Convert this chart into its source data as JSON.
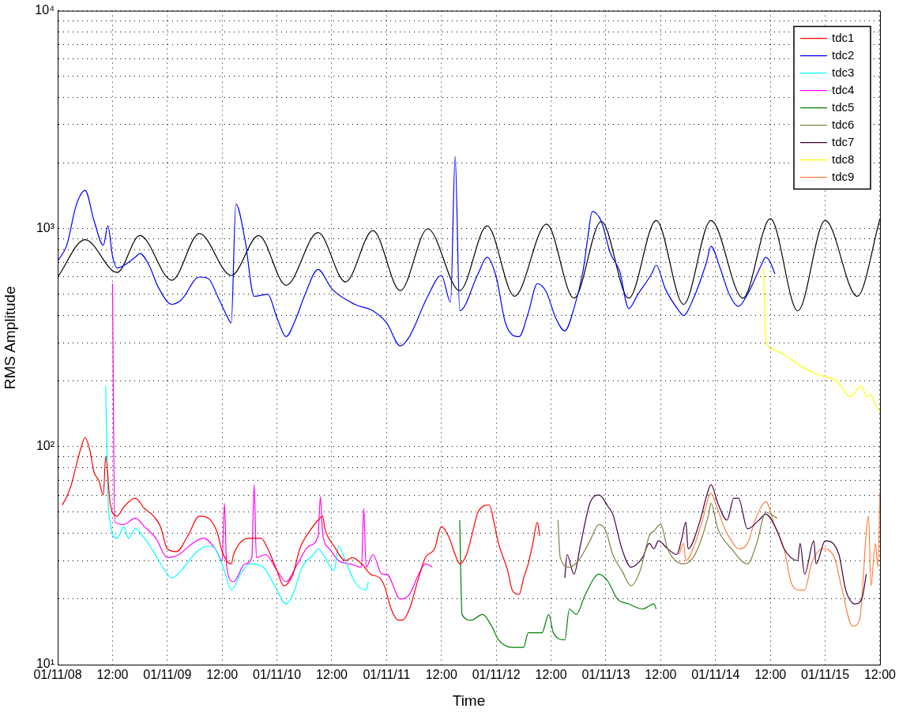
{
  "chart_data": {
    "type": "line",
    "xlabel": "Time",
    "ylabel": "RMS Amplitude",
    "log": "y",
    "grid": true,
    "legend": "top right",
    "xlim": [
      "--11-08T00:00",
      "--11-15T12:00"
    ],
    "xticks": [
      {
        "value": "--11-08T00:00",
        "label": "01/11/08"
      },
      {
        "value": "--11-08T12:00",
        "label": "12:00"
      },
      {
        "value": "--11-09T00:00",
        "label": "01/11/09"
      },
      {
        "value": "--11-09T12:00",
        "label": "12:00"
      },
      {
        "value": "--11-10T00:00",
        "label": "01/11/10"
      },
      {
        "value": "--11-10T12:00",
        "label": "12:00"
      },
      {
        "value": "--11-11T00:00",
        "label": "01/11/11"
      },
      {
        "value": "--11-11T12:00",
        "label": "12:00"
      },
      {
        "value": "--11-12T00:00",
        "label": "01/11/12"
      },
      {
        "value": "--11-12T12:00",
        "label": "12:00"
      },
      {
        "value": "--11-13T00:00",
        "label": "01/11/13"
      },
      {
        "value": "--11-13T12:00",
        "label": "12:00"
      },
      {
        "value": "--11-14T00:00",
        "label": "01/11/14"
      },
      {
        "value": "--11-14T12:00",
        "label": "12:00"
      },
      {
        "value": "--11-15T00:00",
        "label": "01/11/15"
      },
      {
        "value": "--11-15T12:00",
        "label": "12:00"
      }
    ],
    "ylim": [
      10,
      10000
    ],
    "yticks": [
      {
        "value": 10,
        "label": "10¹"
      },
      {
        "value": 20,
        "label": null
      },
      {
        "value": 30,
        "label": null
      },
      {
        "value": 40,
        "label": null
      },
      {
        "value": 50,
        "label": null
      },
      {
        "value": 60,
        "label": null
      },
      {
        "value": 70,
        "label": null
      },
      {
        "value": 80,
        "label": null
      },
      {
        "value": 90,
        "label": null
      },
      {
        "value": 100,
        "label": "10²"
      },
      {
        "value": 200,
        "label": null
      },
      {
        "value": 300,
        "label": null
      },
      {
        "value": 400,
        "label": null
      },
      {
        "value": 500,
        "label": null
      },
      {
        "value": 600,
        "label": null
      },
      {
        "value": 700,
        "label": null
      },
      {
        "value": 800,
        "label": null
      },
      {
        "value": 900,
        "label": null
      },
      {
        "value": 1000,
        "label": "10³"
      },
      {
        "value": 2000,
        "label": null
      },
      {
        "value": 3000,
        "label": null
      },
      {
        "value": 4000,
        "label": null
      },
      {
        "value": 5000,
        "label": null
      },
      {
        "value": 6000,
        "label": null
      },
      {
        "value": 7000,
        "label": null
      },
      {
        "value": 8000,
        "label": null
      },
      {
        "value": 9000,
        "label": null
      },
      {
        "value": 10000,
        "label": "10⁴"
      }
    ],
    "series": [
      {
        "name": "tdc1",
        "color": "#ff0000",
        "x": [
          "--11-08T01:00",
          "--11-08T02:00",
          "--11-08T03:00",
          "--11-08T04:00",
          "--11-08T05:00",
          "--11-08T06:00",
          "--11-08T07:00",
          "--11-08T08:00",
          "--11-08T09:00",
          "--11-08T10:00",
          "--11-08T10:30",
          "--11-08T11:30",
          "--11-08T13:00",
          "--11-08T14:30",
          "--11-08T17:00",
          "--11-08T19:00",
          "--11-08T21:00",
          "--11-08T22:30",
          "--11-09T00:00",
          "--11-09T02:00",
          "--11-09T04:30",
          "--11-09T07:00",
          "--11-09T09:00",
          "--11-09T11:00",
          "--11-09T12:00",
          "--11-09T14:00",
          "--11-09T14:30",
          "--11-09T18:00",
          "--11-09T20:30",
          "--11-09T22:00",
          "--11-10T00:00",
          "--11-10T01:30",
          "--11-10T03:30",
          "--11-10T05:00",
          "--11-10T07:30",
          "--11-10T09:00",
          "--11-10T10:00",
          "--11-10T10:30",
          "--11-10T12:30",
          "--11-10T15:00",
          "--11-10T16:30",
          "--11-10T18:30",
          "--11-10T20:30",
          "--11-10T22:30",
          "--11-10T23:30",
          "--11-11T01:00",
          "--11-11T02:30",
          "--11-11T03:30",
          "--11-11T05:00",
          "--11-11T07:00",
          "--11-11T08:30",
          "--11-11T10:30",
          "--11-11T12:00",
          "--11-11T13:30",
          "--11-11T15:00",
          "--11-11T16:00",
          "--11-11T17:30",
          "--11-11T18:30",
          "--11-11T20:00",
          "--11-11T22:30",
          "--11-11T23:30",
          "--11-12T00:30",
          "--11-12T02:30",
          "--11-12T03:30",
          "--11-12T05:00",
          "--11-12T06:00",
          "--11-12T07:00",
          "--11-12T08:00",
          "--11-12T09:00",
          "--11-12T09:30"
        ],
        "values": [
          54,
          59,
          67,
          81,
          97,
          110,
          97,
          76,
          70,
          60,
          90,
          55,
          48,
          53,
          58,
          52,
          48,
          43,
          34,
          33,
          39,
          48,
          47,
          40,
          33,
          29,
          32,
          38,
          38,
          34,
          27,
          23,
          26,
          34,
          42,
          46,
          48,
          42,
          35,
          30,
          31,
          29,
          26,
          25,
          23,
          18,
          16,
          16,
          18,
          25,
          31,
          34,
          43,
          39,
          32,
          29,
          32,
          38,
          50,
          54,
          45,
          36,
          27,
          22,
          21,
          25,
          29,
          36,
          45,
          39
        ]
      },
      {
        "name": "tdc2",
        "color": "#0000ff",
        "x": [
          "--11-08T00:00",
          "--11-08T02:00",
          "--11-08T04:00",
          "--11-08T06:00",
          "--11-08T08:00",
          "--11-08T10:00",
          "--11-08T11:00",
          "--11-08T12:00",
          "--11-08T13:00",
          "--11-08T17:00",
          "--11-08T18:00",
          "--11-08T20:00",
          "--11-08T22:00",
          "--11-09T01:00",
          "--11-09T03:00",
          "--11-09T07:00",
          "--11-09T09:00",
          "--11-09T11:00",
          "--11-09T13:00",
          "--11-09T14:00",
          "--11-09T15:00",
          "--11-09T17:00",
          "--11-09T19:00",
          "--11-09T22:00",
          "--11-10T00:00",
          "--11-10T02:00",
          "--11-10T04:00",
          "--11-10T06:00",
          "--11-10T09:00",
          "--11-10T12:00",
          "--11-10T17:00",
          "--11-10T21:00",
          "--11-11T00:00",
          "--11-11T03:00",
          "--11-11T05:00",
          "--11-11T09:00",
          "--11-11T12:00",
          "--11-11T14:00",
          "--11-11T15:00",
          "--11-11T16:00",
          "--11-11T20:00",
          "--11-11T22:00",
          "--11-12T00:00",
          "--11-12T02:00",
          "--11-12T05:00",
          "--11-12T07:00",
          "--11-12T09:00",
          "--11-12T11:00",
          "--11-12T13:00",
          "--11-12T15:00",
          "--11-12T17:00",
          "--11-12T19:00",
          "--11-12T20:00",
          "--11-12T21:00",
          "--11-12T23:00",
          "--11-13T01:00",
          "--11-13T03:00",
          "--11-13T05:00",
          "--11-13T07:00",
          "--11-13T10:00",
          "--11-13T11:00",
          "--11-13T13:00",
          "--11-13T16:00",
          "--11-13T17:00",
          "--11-13T19:00",
          "--11-13T22:00",
          "--11-13T23:00",
          "--11-14T01:00",
          "--11-14T03:00",
          "--11-14T05:00",
          "--11-14T07:00",
          "--11-14T10:00",
          "--11-14T11:00",
          "--11-14T12:00",
          "--11-14T13:00"
        ],
        "values": [
          710,
          840,
          1270,
          1500,
          1080,
          840,
          1030,
          750,
          660,
          740,
          770,
          680,
          540,
          450,
          470,
          600,
          590,
          490,
          400,
          370,
          1300,
          890,
          490,
          500,
          390,
          320,
          380,
          490,
          650,
          530,
          450,
          420,
          370,
          290,
          320,
          490,
          610,
          460,
          2150,
          420,
          620,
          740,
          600,
          370,
          320,
          410,
          560,
          510,
          390,
          340,
          430,
          640,
          900,
          1200,
          1080,
          770,
          640,
          430,
          500,
          620,
          680,
          530,
          420,
          400,
          470,
          700,
          830,
          660,
          500,
          440,
          500,
          680,
          740,
          700,
          620
        ]
      },
      {
        "name": "tdc3",
        "color": "#00ffff",
        "x": [
          "--11-08T10:30",
          "--11-08T11:00",
          "--11-08T11:30",
          "--11-08T13:00",
          "--11-08T14:30",
          "--11-08T15:30",
          "--11-08T17:00",
          "--11-08T19:00",
          "--11-08T21:00",
          "--11-08T23:00",
          "--11-09T01:00",
          "--11-09T03:00",
          "--11-09T06:30",
          "--11-09T09:00",
          "--11-09T10:30",
          "--11-09T12:30",
          "--11-09T14:00",
          "--11-09T16:00",
          "--11-09T18:00",
          "--11-09T21:00",
          "--11-09T23:30",
          "--11-10T02:00",
          "--11-10T03:30",
          "--11-10T05:30",
          "--11-10T08:00",
          "--11-10T09:00",
          "--11-10T10:30",
          "--11-10T12:30",
          "--11-10T13:30",
          "--11-10T15:00",
          "--11-10T17:00",
          "--11-10T19:30",
          "--11-10T20:00"
        ],
        "values": [
          190,
          59,
          45,
          38,
          43,
          38,
          42,
          38,
          33,
          28,
          25,
          27,
          33,
          35,
          34,
          27,
          22,
          26,
          29,
          28,
          23,
          19,
          21,
          28,
          32,
          34,
          31,
          27,
          35,
          30,
          24,
          22,
          24
        ]
      },
      {
        "name": "tdc4",
        "color": "#ff00ff",
        "x": [
          "--11-08T12:00",
          "--11-08T12:30",
          "--11-08T14:30",
          "--11-08T17:00",
          "--11-08T19:00",
          "--11-08T21:30",
          "--11-09T00:00",
          "--11-09T02:30",
          "--11-09T05:30",
          "--11-09T08:00",
          "--11-09T10:30",
          "--11-09T12:00",
          "--11-09T12:30",
          "--11-09T13:00",
          "--11-09T14:30",
          "--11-09T17:00",
          "--11-09T18:30",
          "--11-09T19:00",
          "--11-09T19:30",
          "--11-09T21:30",
          "--11-10T00:00",
          "--11-10T02:00",
          "--11-10T04:30",
          "--11-10T07:00",
          "--11-10T09:00",
          "--11-10T09:30",
          "--11-10T10:00",
          "--11-10T11:30",
          "--11-10T13:30",
          "--11-10T16:00",
          "--11-10T18:30",
          "--11-10T19:00",
          "--11-10T19:30",
          "--11-10T21:00",
          "--11-10T23:00",
          "--11-11T00:00",
          "--11-11T03:00",
          "--11-11T05:00",
          "--11-11T07:00",
          "--11-11T08:30",
          "--11-11T10:00"
        ],
        "values": [
          560,
          45,
          44,
          47,
          43,
          38,
          31,
          32,
          36,
          38,
          34,
          30,
          55,
          28,
          24,
          29,
          31,
          67,
          31,
          32,
          27,
          24,
          29,
          35,
          39,
          59,
          40,
          34,
          30,
          29,
          28,
          52,
          28,
          32,
          26,
          26,
          20,
          21,
          26,
          29,
          28
        ]
      },
      {
        "name": "tdc5",
        "color": "#008000",
        "x": [
          "--11-11T16:00",
          "--11-11T16:30",
          "--11-11T18:30",
          "--11-11T21:00",
          "--11-11T23:00",
          "--11-12T00:30",
          "--11-12T03:30",
          "--11-12T06:00",
          "--11-12T07:00",
          "--11-12T10:00",
          "--11-12T11:30",
          "--11-12T12:30",
          "--11-12T15:00",
          "--11-12T16:00",
          "--11-12T17:30",
          "--11-12T19:30",
          "--11-12T22:30",
          "--11-13T00:30",
          "--11-13T02:30",
          "--11-13T05:00",
          "--11-13T08:00",
          "--11-13T10:30",
          "--11-13T11:00"
        ],
        "values": [
          46,
          17,
          16,
          17,
          15,
          13,
          12,
          12,
          14,
          14,
          17,
          14,
          13,
          18,
          17,
          21,
          26,
          24,
          20,
          19,
          18,
          19,
          18
        ]
      },
      {
        "name": "tdc6",
        "color": "#808040",
        "x": [
          "--11-12T13:30",
          "--11-12T14:00",
          "--11-12T16:00",
          "--11-12T18:00",
          "--11-12T20:30",
          "--11-12T22:30",
          "--11-13T00:00",
          "--11-13T01:30",
          "--11-13T03:30",
          "--11-13T05:30",
          "--11-13T07:30",
          "--11-13T09:30",
          "--11-13T10:30",
          "--11-13T12:00",
          "--11-13T13:30",
          "--11-13T17:00",
          "--11-13T19:30",
          "--11-13T22:30",
          "--11-13T23:00",
          "--11-14T00:30",
          "--11-14T03:30",
          "--11-14T07:00",
          "--11-14T09:00",
          "--11-14T11:00",
          "--11-14T13:30"
        ],
        "values": [
          46,
          31,
          28,
          30,
          37,
          44,
          41,
          32,
          27,
          23,
          27,
          39,
          41,
          44,
          34,
          29,
          32,
          49,
          55,
          42,
          34,
          29,
          36,
          50,
          47
        ]
      },
      {
        "name": "tdc7",
        "color": "#400040",
        "x": [
          "--11-12T15:00",
          "--11-12T15:30",
          "--11-12T17:00",
          "--11-12T18:30",
          "--11-12T20:30",
          "--11-12T22:30",
          "--11-13T00:30",
          "--11-13T01:30",
          "--11-13T03:30",
          "--11-13T05:30",
          "--11-13T08:00",
          "--11-13T09:30",
          "--11-13T10:30",
          "--11-13T11:30",
          "--11-13T13:30",
          "--11-13T15:30",
          "--11-13T16:30",
          "--11-13T17:30",
          "--11-13T18:00",
          "--11-13T20:30",
          "--11-13T22:00",
          "--11-13T23:00",
          "--11-14T00:30",
          "--11-14T02:30",
          "--11-14T04:00",
          "--11-14T05:00",
          "--11-14T07:00",
          "--11-14T09:30",
          "--11-14T11:00",
          "--11-14T13:30",
          "--11-14T15:00",
          "--11-14T18:00",
          "--11-14T18:30",
          "--11-14T19:30",
          "--11-14T21:30",
          "--11-14T22:00",
          "--11-15T00:00",
          "--11-15T03:00",
          "--11-15T04:30",
          "--11-15T06:30",
          "--11-15T08:00",
          "--11-15T09:00"
        ],
        "values": [
          25,
          32,
          26,
          36,
          55,
          60,
          53,
          49,
          34,
          28,
          31,
          36,
          34,
          37,
          34,
          32,
          37,
          45,
          34,
          45,
          59,
          67,
          55,
          46,
          58,
          58,
          42,
          46,
          49,
          41,
          34,
          30,
          36,
          26,
          37,
          29,
          37,
          32,
          22,
          19,
          20,
          26
        ]
      },
      {
        "name": "tdc8",
        "color": "#ffff00",
        "x": [
          "--11-14T10:30",
          "--11-14T11:00",
          "--11-14T12:30",
          "--11-14T15:00",
          "--11-14T18:00",
          "--11-14T21:00",
          "--11-15T00:00",
          "--11-15T02:30",
          "--11-15T05:30",
          "--11-15T08:00",
          "--11-15T09:00",
          "--11-15T10:00",
          "--11-15T11:00",
          "--11-15T12:00"
        ],
        "values": [
          660,
          310,
          280,
          264,
          240,
          220,
          210,
          200,
          170,
          190,
          170,
          173,
          155,
          145
        ]
      },
      {
        "name": "tdc9",
        "color": "#ff8040",
        "x": [
          "--11-13T16:00",
          "--11-13T17:00",
          "--11-13T17:30",
          "--11-13T19:30",
          "--11-13T21:00",
          "--11-13T23:00",
          "--11-14T00:00",
          "--11-14T02:00",
          "--11-14T03:30",
          "--11-14T05:00",
          "--11-14T07:00",
          "--11-14T08:30",
          "--11-14T10:00",
          "--11-14T11:00",
          "--11-14T13:00",
          "--11-14T15:00",
          "--11-14T16:30",
          "--11-14T18:00",
          "--11-14T19:30",
          "--11-14T21:00",
          "--11-14T23:30",
          "--11-15T02:00",
          "--11-15T03:30",
          "--11-15T06:00",
          "--11-15T07:30",
          "--11-15T09:30",
          "--11-15T10:00",
          "--11-15T11:00",
          "--11-15T11:30",
          "--11-15T12:00"
        ],
        "values": [
          32,
          36,
          30,
          36,
          45,
          61,
          55,
          42,
          37,
          34,
          36,
          45,
          53,
          56,
          43,
          34,
          24,
          22,
          22,
          29,
          34,
          31,
          23,
          15,
          16,
          48,
          23,
          36,
          28,
          62
        ]
      },
      {
        "color": "#000000",
        "x": [
          "--11-08T00:00",
          "--11-08T06:00",
          "--11-08T13:00",
          "--11-08T18:00",
          "--11-09T01:00",
          "--11-09T07:00",
          "--11-09T14:00",
          "--11-09T20:00",
          "--11-10T02:00",
          "--11-10T09:00",
          "--11-10T15:00",
          "--11-10T21:00",
          "--11-11T03:00",
          "--11-11T09:00",
          "--11-11T16:00",
          "--11-11T22:00",
          "--11-12T04:00",
          "--11-12T11:00",
          "--11-12T17:00",
          "--11-12T23:00",
          "--11-13T05:00",
          "--11-13T11:00",
          "--11-13T17:00",
          "--11-13T23:00",
          "--11-14T06:00",
          "--11-14T12:00",
          "--11-14T18:00",
          "--11-15T00:00",
          "--11-15T07:00",
          "--11-15T12:00"
        ],
        "values": [
          600,
          890,
          630,
          930,
          580,
          950,
          610,
          930,
          550,
          960,
          570,
          980,
          520,
          1000,
          520,
          1030,
          490,
          1050,
          480,
          1080,
          480,
          1090,
          450,
          1090,
          480,
          1110,
          420,
          1090,
          490,
          1110
        ]
      }
    ]
  }
}
